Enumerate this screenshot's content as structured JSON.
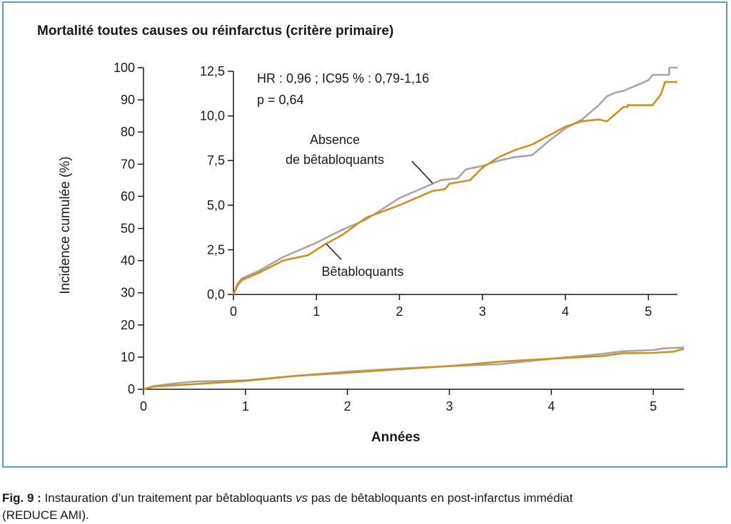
{
  "title": "Mortalité toutes causes ou réinfarctus (critère primaire)",
  "caption": {
    "label": "Fig. 9 :",
    "text_before": "Instauration d’un traitement par bêtabloquants ",
    "text_italic": "vs",
    "text_after": " pas de bêtabloquants en post-infarctus immédiat",
    "text_line2": "(REDUCE AMI)."
  },
  "colors": {
    "absence": "#a6a6a6",
    "betabloquants": "#c8941c",
    "frame": "#5b9bd5"
  },
  "chart_data": [
    {
      "type": "line",
      "xlabel": "Années",
      "ylabel": "Incidence cumulée (%)",
      "xlim": [
        0,
        5.3
      ],
      "ylim": [
        0,
        100
      ],
      "x_ticks": [
        0,
        1,
        2,
        3,
        4,
        5
      ],
      "y_ticks": [
        0,
        10,
        20,
        30,
        40,
        50,
        60,
        70,
        80,
        90,
        100
      ],
      "grid": false,
      "series": [
        {
          "name": "Absence de bêtabloquants",
          "color_key": "absence",
          "points": [
            [
              0,
              0
            ],
            [
              0.1,
              1
            ],
            [
              0.3,
              1.8
            ],
            [
              0.5,
              2.4
            ],
            [
              1,
              2.8
            ],
            [
              2,
              5.5
            ],
            [
              2.5,
              6.4
            ],
            [
              3,
              7.2
            ],
            [
              3.5,
              7.8
            ],
            [
              4,
              9.5
            ],
            [
              4.5,
              11
            ],
            [
              4.7,
              11.8
            ],
            [
              5,
              12.2
            ],
            [
              5.1,
              12.7
            ],
            [
              5.3,
              13
            ]
          ]
        },
        {
          "name": "Bêtabloquants",
          "color_key": "betabloquants",
          "points": [
            [
              0,
              0
            ],
            [
              0.1,
              0.8
            ],
            [
              0.3,
              1.2
            ],
            [
              0.5,
              1.6
            ],
            [
              1,
              2.6
            ],
            [
              1.5,
              4.2
            ],
            [
              2,
              5.1
            ],
            [
              2.5,
              6.2
            ],
            [
              3,
              7.2
            ],
            [
              3.5,
              8.6
            ],
            [
              4,
              9.5
            ],
            [
              4.5,
              10.3
            ],
            [
              4.7,
              11.2
            ],
            [
              5,
              11.3
            ],
            [
              5.2,
              11.7
            ],
            [
              5.3,
              12.6
            ]
          ]
        }
      ]
    },
    {
      "type": "line",
      "inset": true,
      "xlim": [
        0,
        5.35
      ],
      "ylim": [
        0,
        12.5
      ],
      "x_ticks": [
        0,
        1,
        2,
        3,
        4,
        5
      ],
      "y_ticks": [
        "0,0",
        "2,5",
        "5,0",
        "7,5",
        "10,0",
        "12,5"
      ],
      "y_tick_values": [
        0,
        2.5,
        5,
        7.5,
        10,
        12.5
      ],
      "grid": false,
      "annotation_lines": [
        "HR : 0,96 ; IC95 % : 0,79-1,16",
        "p = 0,64"
      ],
      "series_labels": {
        "absence": [
          "Absence",
          "de bêtabloquants"
        ],
        "betabloquants": [
          "Bêtabloquants"
        ]
      },
      "series": [
        {
          "name": "Absence de bêtabloquants",
          "color_key": "absence",
          "points": [
            [
              0,
              0
            ],
            [
              0.05,
              0.6
            ],
            [
              0.1,
              0.9
            ],
            [
              0.3,
              1.3
            ],
            [
              0.6,
              2.1
            ],
            [
              1,
              2.9
            ],
            [
              1.3,
              3.6
            ],
            [
              1.6,
              4.2
            ],
            [
              2,
              5.4
            ],
            [
              2.3,
              6.0
            ],
            [
              2.5,
              6.4
            ],
            [
              2.7,
              6.5
            ],
            [
              2.8,
              7.0
            ],
            [
              3.0,
              7.2
            ],
            [
              3.2,
              7.5
            ],
            [
              3.4,
              7.7
            ],
            [
              3.6,
              7.8
            ],
            [
              3.8,
              8.6
            ],
            [
              4.0,
              9.3
            ],
            [
              4.2,
              9.8
            ],
            [
              4.4,
              10.6
            ],
            [
              4.5,
              11.1
            ],
            [
              4.6,
              11.3
            ],
            [
              4.7,
              11.4
            ],
            [
              4.85,
              11.7
            ],
            [
              5.0,
              12.0
            ],
            [
              5.05,
              12.3
            ],
            [
              5.25,
              12.3
            ],
            [
              5.25,
              12.7
            ],
            [
              5.35,
              12.7
            ]
          ]
        },
        {
          "name": "Bêtabloquants",
          "color_key": "betabloquants",
          "points": [
            [
              0,
              0
            ],
            [
              0.05,
              0.5
            ],
            [
              0.1,
              0.8
            ],
            [
              0.3,
              1.2
            ],
            [
              0.6,
              1.9
            ],
            [
              0.9,
              2.2
            ],
            [
              1.1,
              2.8
            ],
            [
              1.3,
              3.3
            ],
            [
              1.6,
              4.3
            ],
            [
              2.0,
              5.0
            ],
            [
              2.2,
              5.4
            ],
            [
              2.4,
              5.8
            ],
            [
              2.55,
              5.9
            ],
            [
              2.6,
              6.2
            ],
            [
              2.85,
              6.4
            ],
            [
              3.0,
              7.1
            ],
            [
              3.2,
              7.7
            ],
            [
              3.4,
              8.1
            ],
            [
              3.6,
              8.4
            ],
            [
              3.8,
              8.9
            ],
            [
              4.0,
              9.4
            ],
            [
              4.2,
              9.7
            ],
            [
              4.4,
              9.8
            ],
            [
              4.5,
              9.7
            ],
            [
              4.6,
              10.1
            ],
            [
              4.7,
              10.5
            ],
            [
              4.75,
              10.5
            ],
            [
              4.75,
              10.6
            ],
            [
              5.05,
              10.6
            ],
            [
              5.15,
              11.2
            ],
            [
              5.2,
              11.9
            ],
            [
              5.35,
              11.9
            ]
          ]
        }
      ]
    }
  ]
}
